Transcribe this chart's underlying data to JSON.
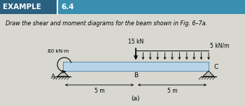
{
  "title_box_text": "EXAMPLE",
  "title_number": "6.4",
  "subtitle": "Draw the shear and moment diagrams for the beam shown in Fig. 6–7a.",
  "beam_color": "#b8d4e8",
  "beam_edge_color": "#6090b0",
  "moment_label": "80 kN·m",
  "point_load_label": "15 kN",
  "dist_load_label": "5 kN/m",
  "label_A": "A",
  "label_B": "B",
  "label_C": "C",
  "dim_label_left": "5 m",
  "dim_label_right": "5 m",
  "fig_label": "(a)",
  "bg_color": "#dcdcd4",
  "header_color": "#3a8fb0",
  "example_bg": "#2a6080",
  "header_text_color": "#ffffff",
  "body_bg": "#d8d8d0"
}
